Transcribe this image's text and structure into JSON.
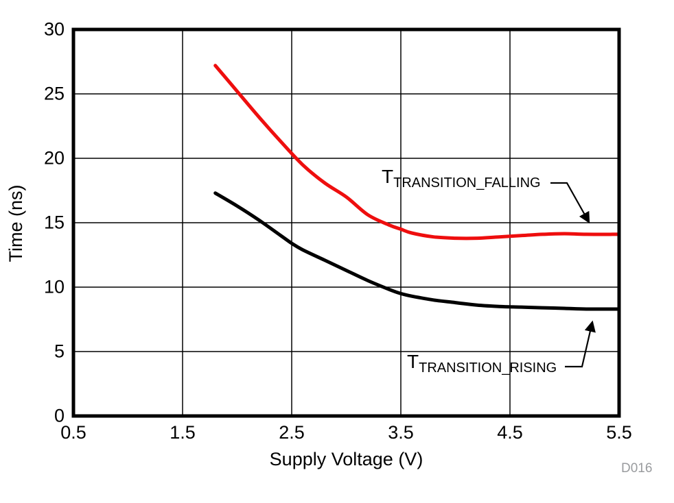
{
  "figure": {
    "code": "D016",
    "code_color": "#999b9e",
    "background": "#ffffff",
    "axis_color": "#000000",
    "grid_color": "#000000"
  },
  "chart_data": {
    "type": "line",
    "title": "",
    "xlabel": "Supply Voltage (V)",
    "ylabel": "Time (ns)",
    "xlim": [
      0.5,
      5.5
    ],
    "ylim": [
      0,
      30
    ],
    "xticks": [
      0.5,
      1.5,
      2.5,
      3.5,
      4.5,
      5.5
    ],
    "yticks": [
      0,
      5,
      10,
      15,
      20,
      25,
      30
    ],
    "grid": true,
    "legend_position": "inline-annotations",
    "series": [
      {
        "name": "T_TRANSITION_FALLING",
        "label_main": "T",
        "label_sub": "TRANSITION_FALLING",
        "color": "#ee0e0e",
        "points": [
          [
            1.8,
            27.2
          ],
          [
            1.9,
            26.2
          ],
          [
            2.0,
            25.2
          ],
          [
            2.2,
            23.2
          ],
          [
            2.4,
            21.3
          ],
          [
            2.6,
            19.5
          ],
          [
            2.8,
            18.1
          ],
          [
            3.0,
            17.0
          ],
          [
            3.2,
            15.6
          ],
          [
            3.4,
            14.8
          ],
          [
            3.5,
            14.5
          ],
          [
            3.6,
            14.2
          ],
          [
            3.8,
            13.9
          ],
          [
            4.0,
            13.8
          ],
          [
            4.2,
            13.8
          ],
          [
            4.4,
            13.9
          ],
          [
            4.6,
            14.0
          ],
          [
            4.8,
            14.1
          ],
          [
            5.0,
            14.15
          ],
          [
            5.2,
            14.1
          ],
          [
            5.5,
            14.1
          ]
        ]
      },
      {
        "name": "T_TRANSITION_RISING",
        "label_main": "T",
        "label_sub": "TRANSITION_RISING",
        "color": "#000000",
        "points": [
          [
            1.8,
            17.3
          ],
          [
            2.0,
            16.3
          ],
          [
            2.2,
            15.2
          ],
          [
            2.4,
            14.0
          ],
          [
            2.5,
            13.4
          ],
          [
            2.6,
            12.9
          ],
          [
            2.8,
            12.1
          ],
          [
            3.0,
            11.3
          ],
          [
            3.2,
            10.5
          ],
          [
            3.4,
            9.8
          ],
          [
            3.5,
            9.5
          ],
          [
            3.6,
            9.3
          ],
          [
            3.8,
            9.0
          ],
          [
            4.0,
            8.8
          ],
          [
            4.2,
            8.6
          ],
          [
            4.4,
            8.5
          ],
          [
            4.6,
            8.45
          ],
          [
            4.8,
            8.4
          ],
          [
            5.0,
            8.35
          ],
          [
            5.2,
            8.3
          ],
          [
            5.5,
            8.3
          ]
        ]
      }
    ]
  }
}
